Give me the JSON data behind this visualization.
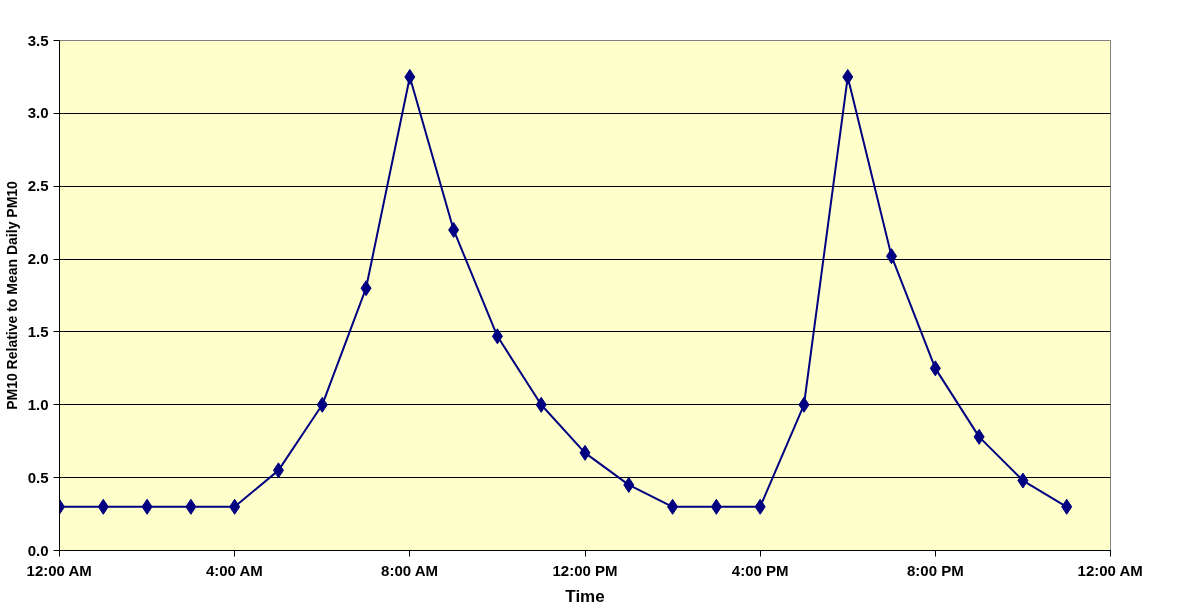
{
  "chart_data": {
    "type": "line",
    "xlabel": "Time",
    "ylabel": "PM10 Relative to Mean Daily PM10",
    "x": [
      0,
      1,
      2,
      3,
      4,
      5,
      6,
      7,
      8,
      9,
      10,
      11,
      12,
      13,
      14,
      15,
      16,
      17,
      18,
      19,
      20,
      21,
      22,
      23
    ],
    "series": [
      {
        "color": "#000080",
        "values": [
          0.3,
          0.3,
          0.3,
          0.3,
          0.3,
          0.55,
          1.0,
          1.8,
          3.25,
          2.2,
          1.47,
          1.0,
          0.67,
          0.45,
          0.3,
          0.3,
          0.3,
          1.0,
          3.25,
          2.02,
          1.25,
          0.78,
          0.48,
          0.3
        ]
      }
    ],
    "xlim": [
      0,
      24
    ],
    "xticks": [
      {
        "value": 0,
        "label": "12:00 AM"
      },
      {
        "value": 4,
        "label": "4:00 AM"
      },
      {
        "value": 8,
        "label": "8:00 AM"
      },
      {
        "value": 12,
        "label": "12:00 PM"
      },
      {
        "value": 16,
        "label": "4:00 PM"
      },
      {
        "value": 20,
        "label": "8:00 PM"
      },
      {
        "value": 24,
        "label": "12:00 AM"
      }
    ],
    "ylim": [
      0,
      3.5
    ],
    "yticks": [
      {
        "value": 0,
        "label": "0.0"
      },
      {
        "value": 0.5,
        "label": "0.5"
      },
      {
        "value": 1,
        "label": "1.0"
      },
      {
        "value": 1.5,
        "label": "1.5"
      },
      {
        "value": 2,
        "label": "2.0"
      },
      {
        "value": 2.5,
        "label": "2.5"
      },
      {
        "value": 3,
        "label": "3.0"
      },
      {
        "value": 3.5,
        "label": "3.5"
      }
    ],
    "grid": "y",
    "marker": "diamond",
    "line_style": "solid"
  }
}
